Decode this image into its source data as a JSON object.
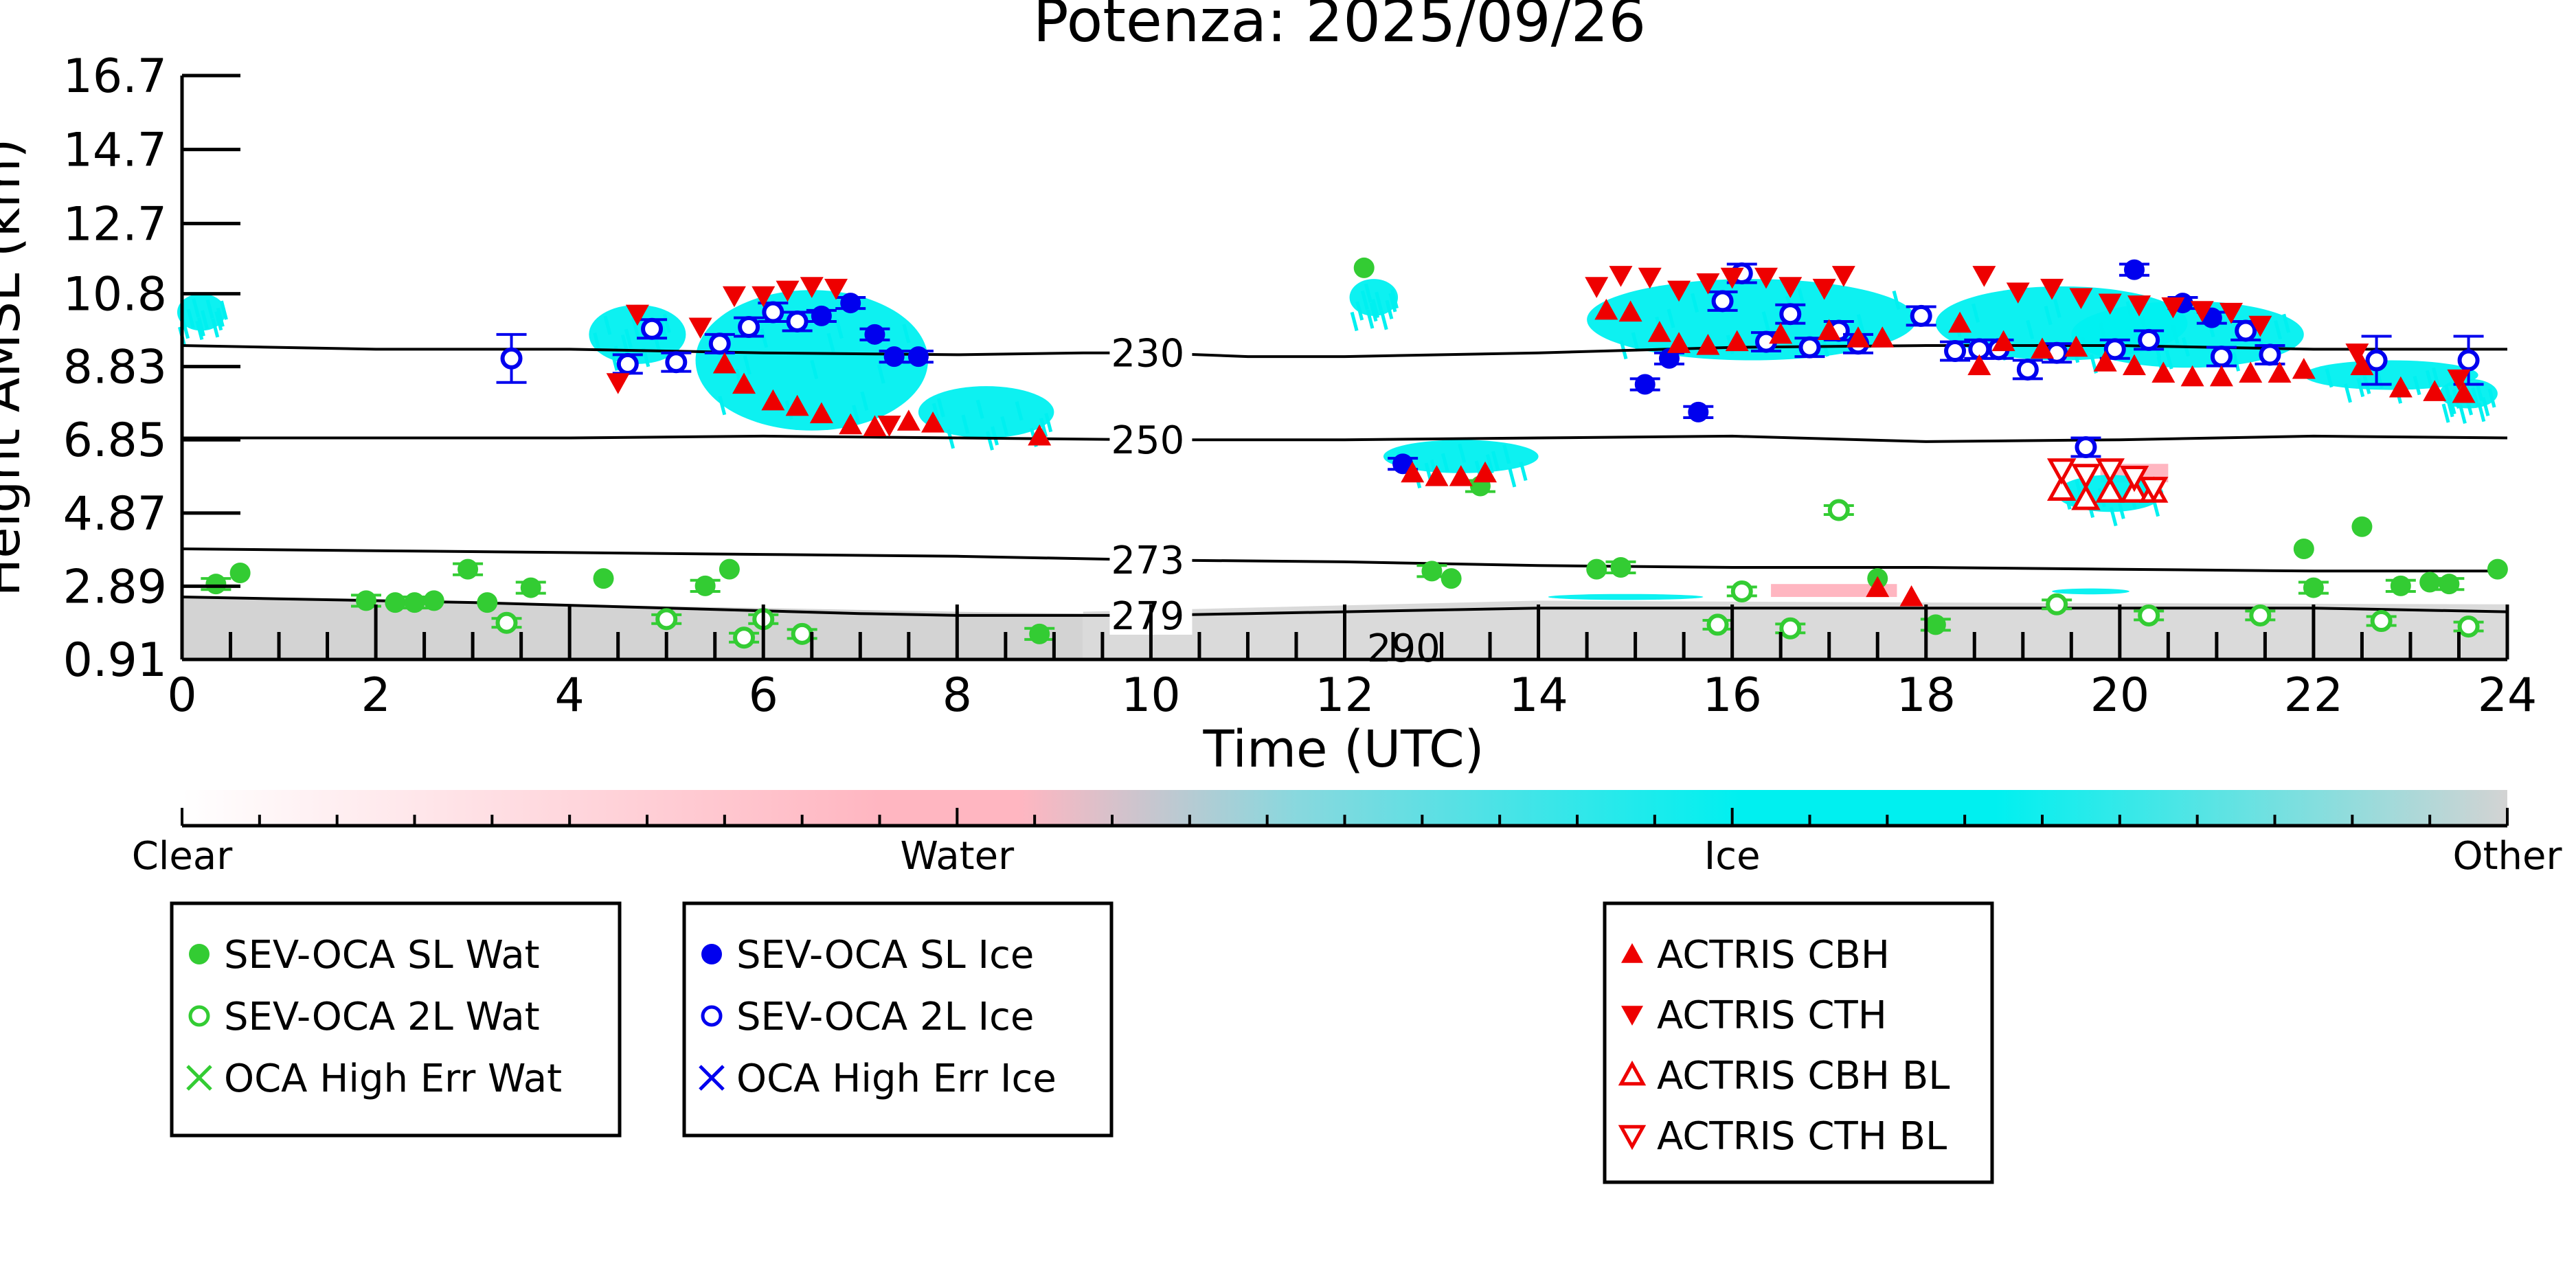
{
  "chart_data": {
    "type": "scatter",
    "title": "Potenza: 2025/09/26",
    "xlabel": "Time (UTC)",
    "ylabel": "Height AMSL (km)",
    "xlim": [
      0,
      24
    ],
    "ylim": [
      0.91,
      16.7
    ],
    "x_ticks": [
      "0",
      "2",
      "4",
      "6",
      "8",
      "10",
      "12",
      "14",
      "16",
      "18",
      "20",
      "22",
      "24"
    ],
    "y_ticks": [
      "0.91",
      "2.89",
      "4.87",
      "6.85",
      "8.83",
      "10.8",
      "12.7",
      "14.7",
      "16.7"
    ],
    "colorbar": {
      "labels": [
        "Clear",
        "Water",
        "Ice",
        "Other"
      ]
    },
    "legend_boxes": [
      [
        "SEV-OCA SL Wat",
        "SEV-OCA 2L Wat",
        "OCA High Err Wat"
      ],
      [
        "SEV-OCA SL Ice",
        "SEV-OCA 2L Ice",
        "OCA High Err Ice"
      ],
      [
        "ACTRIS CBH",
        "ACTRIS CTH",
        "ACTRIS CBH BL",
        "ACTRIS CTH BL"
      ]
    ],
    "isotherms": [
      {
        "label": "230",
        "label_x": 10.0,
        "points": [
          [
            0,
            9.4
          ],
          [
            2,
            9.3
          ],
          [
            4,
            9.3
          ],
          [
            6,
            9.2
          ],
          [
            8,
            9.15
          ],
          [
            9.3,
            9.2
          ],
          [
            10,
            9.2
          ],
          [
            11,
            9.1
          ],
          [
            12,
            9.1
          ],
          [
            14,
            9.2
          ],
          [
            16,
            9.35
          ],
          [
            18,
            9.4
          ],
          [
            20,
            9.4
          ],
          [
            22,
            9.3
          ],
          [
            24,
            9.3
          ]
        ]
      },
      {
        "label": "250",
        "label_x": 10.0,
        "points": [
          [
            0,
            6.9
          ],
          [
            2,
            6.9
          ],
          [
            4,
            6.9
          ],
          [
            6,
            6.95
          ],
          [
            8,
            6.9
          ],
          [
            10,
            6.85
          ],
          [
            12,
            6.85
          ],
          [
            14,
            6.9
          ],
          [
            16,
            6.95
          ],
          [
            18,
            6.8
          ],
          [
            20,
            6.85
          ],
          [
            22,
            6.95
          ],
          [
            24,
            6.9
          ]
        ]
      },
      {
        "label": "273",
        "label_x": 10.0,
        "points": [
          [
            0,
            3.9
          ],
          [
            2,
            3.85
          ],
          [
            4,
            3.8
          ],
          [
            6,
            3.75
          ],
          [
            8,
            3.7
          ],
          [
            10,
            3.6
          ],
          [
            12,
            3.55
          ],
          [
            14,
            3.45
          ],
          [
            16,
            3.4
          ],
          [
            18,
            3.4
          ],
          [
            20,
            3.35
          ],
          [
            22,
            3.3
          ],
          [
            24,
            3.3
          ]
        ]
      },
      {
        "label": "279",
        "label_x": 10.0,
        "points": [
          [
            0,
            2.6
          ],
          [
            1,
            2.55
          ],
          [
            3,
            2.45
          ],
          [
            5,
            2.3
          ],
          [
            7,
            2.15
          ],
          [
            8,
            2.1
          ],
          [
            9.3,
            2.1
          ],
          [
            10,
            2.1
          ],
          [
            11,
            2.15
          ],
          [
            12,
            2.2
          ],
          [
            14,
            2.3
          ],
          [
            16,
            2.3
          ],
          [
            18,
            2.3
          ],
          [
            20,
            2.3
          ],
          [
            22,
            2.3
          ],
          [
            24,
            2.2
          ]
        ]
      }
    ],
    "contour_label_290": {
      "label": "290",
      "x": 12.3,
      "y": 1.0
    },
    "sev_sl_wat": [
      [
        0.35,
        2.95
      ],
      [
        0.6,
        3.25
      ],
      [
        1.9,
        2.5
      ],
      [
        2.2,
        2.45
      ],
      [
        2.4,
        2.45
      ],
      [
        2.6,
        2.5
      ],
      [
        2.95,
        3.35
      ],
      [
        3.15,
        2.45
      ],
      [
        3.6,
        2.85
      ],
      [
        4.35,
        3.1
      ],
      [
        5.4,
        2.9
      ],
      [
        5.65,
        3.35
      ],
      [
        8.85,
        1.6
      ],
      [
        12.2,
        11.5
      ],
      [
        12.9,
        3.3
      ],
      [
        13.1,
        3.1
      ],
      [
        13.4,
        5.6
      ],
      [
        14.6,
        3.35
      ],
      [
        14.85,
        3.4
      ],
      [
        17.5,
        3.1
      ],
      [
        18.1,
        1.85
      ],
      [
        21.9,
        3.9
      ],
      [
        22,
        2.85
      ],
      [
        22.5,
        4.5
      ],
      [
        22.9,
        2.9
      ],
      [
        23.2,
        3.0
      ],
      [
        23.4,
        2.95
      ],
      [
        23.9,
        3.35
      ]
    ],
    "sev_2l_wat": [
      [
        3.35,
        1.9
      ],
      [
        5.0,
        2.0
      ],
      [
        5.8,
        1.5
      ],
      [
        6.0,
        2.0
      ],
      [
        6.4,
        1.6
      ],
      [
        15.85,
        1.85
      ],
      [
        16.1,
        2.75
      ],
      [
        16.6,
        1.75
      ],
      [
        17.1,
        4.95
      ],
      [
        19.35,
        2.4
      ],
      [
        20.3,
        2.1
      ],
      [
        21.45,
        2.1
      ],
      [
        22.7,
        1.95
      ],
      [
        23.6,
        1.8
      ]
    ],
    "sev_sl_ice": [
      [
        6.6,
        10.2
      ],
      [
        6.9,
        10.55
      ],
      [
        7.15,
        9.7
      ],
      [
        7.35,
        9.1
      ],
      [
        7.6,
        9.1
      ],
      [
        12.6,
        6.2
      ],
      [
        15.1,
        8.35
      ],
      [
        15.35,
        9.05
      ],
      [
        15.65,
        7.6
      ],
      [
        20.15,
        11.45
      ],
      [
        20.65,
        10.55
      ],
      [
        20.95,
        10.15
      ]
    ],
    "sev_2l_ice": [
      [
        3.4,
        9.05
      ],
      [
        4.6,
        8.9
      ],
      [
        4.85,
        9.85
      ],
      [
        5.1,
        8.95
      ],
      [
        5.55,
        9.45
      ],
      [
        5.85,
        9.9
      ],
      [
        6.1,
        10.3
      ],
      [
        6.35,
        10.05
      ],
      [
        15.9,
        10.6
      ],
      [
        16.1,
        11.35
      ],
      [
        16.35,
        9.5
      ],
      [
        16.6,
        10.25
      ],
      [
        16.8,
        9.35
      ],
      [
        17.1,
        9.8
      ],
      [
        17.3,
        9.45
      ],
      [
        17.95,
        10.2
      ],
      [
        18.3,
        9.25
      ],
      [
        18.55,
        9.3
      ],
      [
        18.75,
        9.3
      ],
      [
        19.05,
        8.75
      ],
      [
        19.35,
        9.2
      ],
      [
        19.65,
        6.65
      ],
      [
        19.95,
        9.3
      ],
      [
        20.3,
        9.55
      ],
      [
        21.05,
        9.1
      ],
      [
        21.3,
        9.8
      ],
      [
        21.55,
        9.15
      ],
      [
        22.65,
        9.0
      ],
      [
        23.6,
        9.0
      ]
    ],
    "actris_cbh": [
      [
        5.6,
        8.9
      ],
      [
        5.8,
        8.35
      ],
      [
        6.1,
        7.9
      ],
      [
        6.35,
        7.75
      ],
      [
        6.6,
        7.55
      ],
      [
        6.9,
        7.25
      ],
      [
        7.15,
        7.2
      ],
      [
        7.5,
        7.35
      ],
      [
        7.75,
        7.3
      ],
      [
        8.85,
        6.95
      ],
      [
        12.7,
        5.95
      ],
      [
        12.95,
        5.85
      ],
      [
        13.2,
        5.85
      ],
      [
        13.45,
        5.95
      ],
      [
        14.7,
        10.35
      ],
      [
        14.95,
        10.3
      ],
      [
        15.25,
        9.75
      ],
      [
        15.45,
        9.45
      ],
      [
        15.75,
        9.4
      ],
      [
        16.05,
        9.5
      ],
      [
        16.5,
        9.7
      ],
      [
        17.0,
        9.8
      ],
      [
        17.3,
        9.6
      ],
      [
        17.5,
        2.85
      ],
      [
        17.55,
        9.6
      ],
      [
        17.85,
        2.6
      ],
      [
        18.35,
        10.0
      ],
      [
        18.55,
        8.85
      ],
      [
        18.8,
        9.5
      ],
      [
        19.2,
        9.3
      ],
      [
        19.55,
        9.35
      ],
      [
        19.85,
        8.95
      ],
      [
        20.15,
        8.85
      ],
      [
        20.45,
        8.65
      ],
      [
        20.75,
        8.55
      ],
      [
        21.05,
        8.55
      ],
      [
        21.35,
        8.65
      ],
      [
        21.65,
        8.65
      ],
      [
        21.9,
        8.75
      ],
      [
        22.5,
        8.85
      ],
      [
        22.9,
        8.25
      ],
      [
        23.25,
        8.15
      ],
      [
        23.55,
        8.1
      ]
    ],
    "actris_cth": [
      [
        4.5,
        8.4
      ],
      [
        4.7,
        10.25
      ],
      [
        5.35,
        9.9
      ],
      [
        5.7,
        10.75
      ],
      [
        6.0,
        10.75
      ],
      [
        6.25,
        10.9
      ],
      [
        6.5,
        11.0
      ],
      [
        6.75,
        10.95
      ],
      [
        7.3,
        7.25
      ],
      [
        14.6,
        11.0
      ],
      [
        14.85,
        11.3
      ],
      [
        15.15,
        11.25
      ],
      [
        15.45,
        10.9
      ],
      [
        15.75,
        11.1
      ],
      [
        16.0,
        11.25
      ],
      [
        16.35,
        11.25
      ],
      [
        16.6,
        11.0
      ],
      [
        16.95,
        10.95
      ],
      [
        17.15,
        11.3
      ],
      [
        18.6,
        11.3
      ],
      [
        18.95,
        10.85
      ],
      [
        19.3,
        10.95
      ],
      [
        19.6,
        10.7
      ],
      [
        19.9,
        10.55
      ],
      [
        20.2,
        10.5
      ],
      [
        20.55,
        10.45
      ],
      [
        20.85,
        10.35
      ],
      [
        21.15,
        10.3
      ],
      [
        21.45,
        9.95
      ],
      [
        22.45,
        9.2
      ],
      [
        23.5,
        8.5
      ]
    ],
    "actris_cbh_bl": [
      [
        19.4,
        5.5
      ],
      [
        19.65,
        5.25
      ],
      [
        19.9,
        5.45
      ],
      [
        20.15,
        5.45
      ],
      [
        20.35,
        5.45
      ]
    ],
    "actris_cth_bl": [
      [
        19.4,
        6.05
      ],
      [
        19.65,
        5.9
      ],
      [
        19.9,
        6.05
      ],
      [
        20.15,
        5.85
      ],
      [
        20.35,
        5.55
      ]
    ],
    "colors": {
      "water": "#33cc33",
      "ice": "#0000ee",
      "actris": "#ee0000",
      "cyan": "#00f0f0",
      "other": "#d3d3d3",
      "pink": "#ffb6c1"
    }
  }
}
